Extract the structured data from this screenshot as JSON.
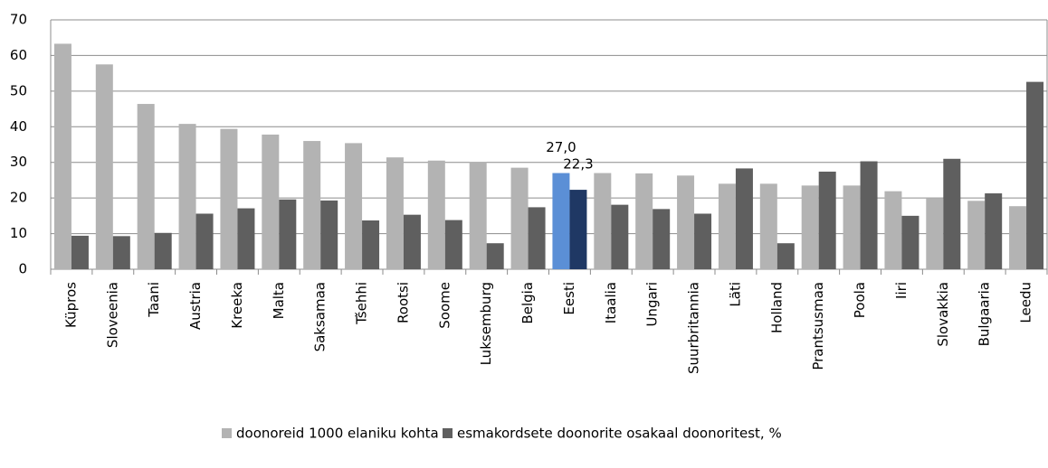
{
  "chart_data": {
    "type": "bar",
    "categories": [
      "Küpros",
      "Sloveenia",
      "Taani",
      "Austria",
      "Kreeka",
      "Malta",
      "Saksamaa",
      "Tšehhi",
      "Rootsi",
      "Soome",
      "Luksemburg",
      "Belgia",
      "Eesti",
      "Itaalia",
      "Ungari",
      "Suurbritannia",
      "Läti",
      "Holland",
      "Prantsusmaa",
      "Poola",
      "Iiri",
      "Slovakkia",
      "Bulgaaria",
      "Leedu"
    ],
    "series": [
      {
        "name": "doonoreid 1000 elaniku kohta",
        "color": "#b3b3b3",
        "colors": [
          "#b3b3b3",
          "#b3b3b3",
          "#b3b3b3",
          "#b3b3b3",
          "#b3b3b3",
          "#b3b3b3",
          "#b3b3b3",
          "#b3b3b3",
          "#b3b3b3",
          "#b3b3b3",
          "#b3b3b3",
          "#b3b3b3",
          "#5b8fd6",
          "#b3b3b3",
          "#b3b3b3",
          "#b3b3b3",
          "#b3b3b3",
          "#b3b3b3",
          "#b3b3b3",
          "#b3b3b3",
          "#b3b3b3",
          "#b3b3b3",
          "#b3b3b3",
          "#b3b3b3"
        ],
        "values": [
          63.3,
          57.5,
          46.4,
          40.8,
          39.4,
          37.8,
          36.0,
          35.4,
          31.4,
          30.5,
          30.0,
          28.5,
          27.0,
          27.0,
          26.9,
          26.3,
          24.0,
          24.0,
          23.5,
          23.5,
          21.9,
          20.0,
          19.2,
          17.7
        ],
        "value_labels": [
          null,
          null,
          null,
          null,
          null,
          null,
          null,
          null,
          null,
          null,
          null,
          null,
          "27,0",
          null,
          null,
          null,
          null,
          null,
          null,
          null,
          null,
          null,
          null,
          null
        ]
      },
      {
        "name": "esmakordsete doonorite osakaal doonoritest, %",
        "color": "#5f5f5f",
        "colors": [
          "#5f5f5f",
          "#5f5f5f",
          "#5f5f5f",
          "#5f5f5f",
          "#5f5f5f",
          "#5f5f5f",
          "#5f5f5f",
          "#5f5f5f",
          "#5f5f5f",
          "#5f5f5f",
          "#5f5f5f",
          "#5f5f5f",
          "#1f3864",
          "#5f5f5f",
          "#5f5f5f",
          "#5f5f5f",
          "#5f5f5f",
          "#5f5f5f",
          "#5f5f5f",
          "#5f5f5f",
          "#5f5f5f",
          "#5f5f5f",
          "#5f5f5f",
          "#5f5f5f"
        ],
        "values": [
          9.4,
          9.3,
          10.2,
          15.6,
          17.1,
          19.6,
          19.3,
          13.7,
          15.3,
          13.8,
          7.3,
          17.4,
          22.3,
          18.1,
          16.9,
          15.6,
          28.3,
          7.3,
          27.4,
          30.3,
          15.0,
          31.0,
          21.3,
          52.6
        ],
        "value_labels": [
          null,
          null,
          null,
          null,
          null,
          null,
          null,
          null,
          null,
          null,
          null,
          null,
          "22,3",
          null,
          null,
          null,
          null,
          null,
          null,
          null,
          null,
          null,
          null,
          null
        ]
      }
    ],
    "ylim": [
      0,
      70
    ],
    "yticks": [
      0,
      10,
      20,
      30,
      40,
      50,
      60,
      70
    ],
    "grid": true,
    "legend": "bottom"
  }
}
